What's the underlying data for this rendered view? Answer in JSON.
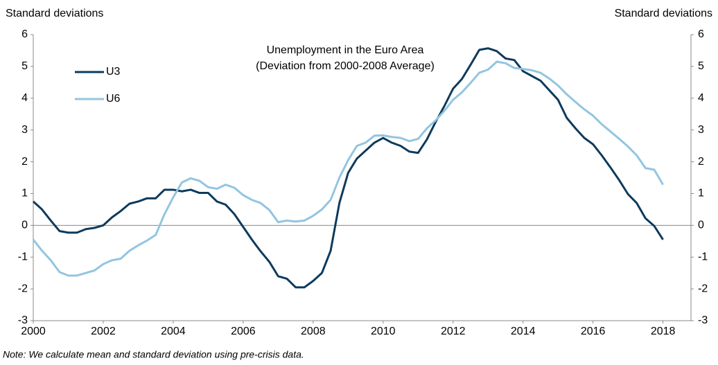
{
  "chart_data": {
    "type": "line",
    "title": [
      "Unemployment in the Euro Area",
      "(Deviation from 2000-2008 Average)"
    ],
    "y_label": "Standard deviations",
    "y2_label": "Standard deviations",
    "note": "Note: We calculate mean and standard deviation using pre-crisis data.",
    "x": [
      2000,
      2000.25,
      2000.5,
      2000.75,
      2001,
      2001.25,
      2001.5,
      2001.75,
      2002,
      2002.25,
      2002.5,
      2002.75,
      2003,
      2003.25,
      2003.5,
      2003.75,
      2004,
      2004.25,
      2004.5,
      2004.75,
      2005,
      2005.25,
      2005.5,
      2005.75,
      2006,
      2006.25,
      2006.5,
      2006.75,
      2007,
      2007.25,
      2007.5,
      2007.75,
      2008,
      2008.25,
      2008.5,
      2008.75,
      2009,
      2009.25,
      2009.5,
      2009.75,
      2010,
      2010.25,
      2010.5,
      2010.75,
      2011,
      2011.25,
      2011.5,
      2011.75,
      2012,
      2012.25,
      2012.5,
      2012.75,
      2013,
      2013.25,
      2013.5,
      2013.75,
      2014,
      2014.25,
      2014.5,
      2014.75,
      2015,
      2015.25,
      2015.5,
      2015.75,
      2016,
      2016.25,
      2016.5,
      2016.75,
      2017,
      2017.25,
      2017.5,
      2017.75,
      2018
    ],
    "series": [
      {
        "name": "U3",
        "color": "#0d3a5c",
        "values": [
          0.75,
          0.5,
          0.15,
          -0.18,
          -0.23,
          -0.23,
          -0.12,
          -0.08,
          0.0,
          0.25,
          0.45,
          0.68,
          0.75,
          0.85,
          0.85,
          1.12,
          1.12,
          1.07,
          1.12,
          1.02,
          1.02,
          0.75,
          0.65,
          0.35,
          -0.05,
          -0.45,
          -0.82,
          -1.15,
          -1.6,
          -1.68,
          -1.95,
          -1.95,
          -1.75,
          -1.5,
          -0.8,
          0.7,
          1.65,
          2.1,
          2.35,
          2.6,
          2.75,
          2.6,
          2.5,
          2.32,
          2.28,
          2.7,
          3.25,
          3.75,
          4.3,
          4.6,
          5.05,
          5.52,
          5.57,
          5.48,
          5.25,
          5.2,
          4.85,
          4.7,
          4.55,
          4.25,
          3.95,
          3.38,
          3.05,
          2.75,
          2.55,
          2.2,
          1.82,
          1.42,
          0.98,
          0.7,
          0.22,
          -0.02,
          -0.45
        ]
      },
      {
        "name": "U6",
        "color": "#92c5e0",
        "values": [
          -0.45,
          -0.8,
          -1.1,
          -1.47,
          -1.58,
          -1.58,
          -1.5,
          -1.42,
          -1.22,
          -1.1,
          -1.05,
          -0.8,
          -0.63,
          -0.48,
          -0.3,
          0.35,
          0.88,
          1.35,
          1.48,
          1.4,
          1.2,
          1.15,
          1.28,
          1.18,
          0.95,
          0.8,
          0.7,
          0.48,
          0.1,
          0.15,
          0.12,
          0.15,
          0.3,
          0.5,
          0.8,
          1.5,
          2.05,
          2.5,
          2.6,
          2.82,
          2.83,
          2.78,
          2.75,
          2.65,
          2.72,
          3.05,
          3.3,
          3.6,
          3.95,
          4.18,
          4.48,
          4.8,
          4.9,
          5.15,
          5.1,
          4.95,
          4.92,
          4.88,
          4.8,
          4.62,
          4.4,
          4.12,
          3.88,
          3.65,
          3.45,
          3.18,
          2.95,
          2.72,
          2.48,
          2.2,
          1.8,
          1.75,
          1.28
        ]
      }
    ],
    "xlim": [
      2000,
      2018.8
    ],
    "xticks": [
      2000,
      2002,
      2004,
      2006,
      2008,
      2010,
      2012,
      2014,
      2016,
      2018
    ],
    "ylim": [
      -3,
      6
    ],
    "yticks": [
      -3,
      -2,
      -1,
      0,
      1,
      2,
      3,
      4,
      5,
      6
    ],
    "y2lim": [
      -3,
      6
    ],
    "y2ticks": [
      -3,
      -2,
      -1,
      0,
      1,
      2,
      3,
      4,
      5,
      6
    ],
    "legend": "upper left"
  }
}
